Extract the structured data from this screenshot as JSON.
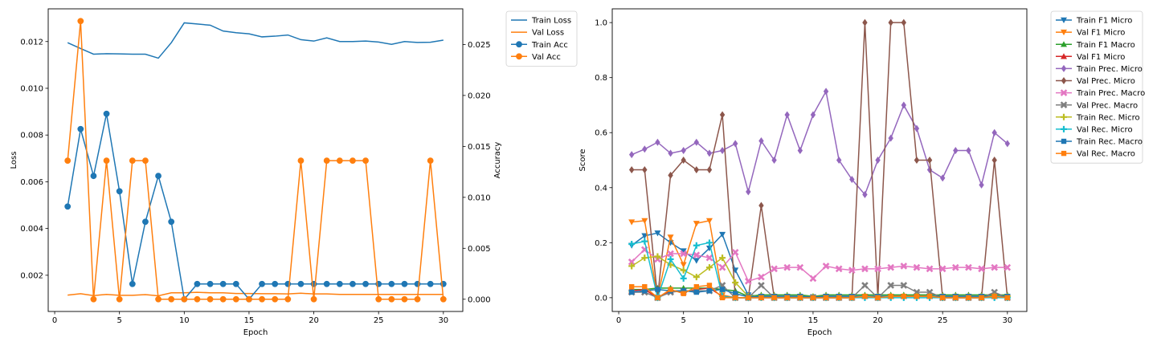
{
  "chart_data": [
    {
      "type": "line",
      "xlabel": "Epoch",
      "ylabel": "Loss",
      "y2label": "Accuracy",
      "xlim": [
        -0.5,
        31.5
      ],
      "ylim": [
        0.00045,
        0.0134
      ],
      "y2lim": [
        -0.0012,
        0.0285
      ],
      "xticks": [
        0,
        5,
        10,
        15,
        20,
        25,
        30
      ],
      "yticks": [
        0.002,
        0.004,
        0.006,
        0.008,
        0.01,
        0.012
      ],
      "y2ticks": [
        0.0,
        0.005,
        0.01,
        0.015,
        0.02,
        0.025
      ],
      "x": [
        1,
        2,
        3,
        4,
        5,
        6,
        7,
        8,
        9,
        10,
        11,
        12,
        13,
        14,
        15,
        16,
        17,
        18,
        19,
        20,
        21,
        22,
        23,
        24,
        25,
        26,
        27,
        28,
        29,
        30
      ],
      "legend_position": "outside-right",
      "series": [
        {
          "name": "Train Loss",
          "axis": "left",
          "marker": "none",
          "color": "#1f77b4",
          "values": [
            0.01195,
            0.0117,
            0.01146,
            0.01148,
            0.01147,
            0.01146,
            0.01146,
            0.01129,
            0.01195,
            0.0128,
            0.01275,
            0.0127,
            0.01245,
            0.01238,
            0.01233,
            0.0122,
            0.01223,
            0.01228,
            0.01208,
            0.01202,
            0.01216,
            0.012,
            0.012,
            0.01202,
            0.01198,
            0.01188,
            0.012,
            0.01196,
            0.01197,
            0.01206
          ]
        },
        {
          "name": "Val Loss",
          "axis": "left",
          "marker": "none",
          "color": "#ff7f0e",
          "values": [
            0.00115,
            0.00121,
            0.00113,
            0.00118,
            0.00114,
            0.00114,
            0.00117,
            0.00112,
            0.00125,
            0.00125,
            0.00127,
            0.00125,
            0.00125,
            0.00122,
            0.00122,
            0.00121,
            0.00121,
            0.0012,
            0.00123,
            0.0012,
            0.0012,
            0.00118,
            0.00118,
            0.00118,
            0.00118,
            0.00118,
            0.00118,
            0.00118,
            0.00118,
            0.00118
          ]
        },
        {
          "name": "Train Acc",
          "axis": "right",
          "marker": "circle",
          "color": "#1f77b4",
          "values": [
            0.0091,
            0.0167,
            0.0121,
            0.0182,
            0.0106,
            0.0015,
            0.0076,
            0.0121,
            0.0076,
            0.0,
            0.0015,
            0.0015,
            0.0015,
            0.0015,
            0.0,
            0.0015,
            0.0015,
            0.0015,
            0.0015,
            0.0015,
            0.0015,
            0.0015,
            0.0015,
            0.0015,
            0.0015,
            0.0015,
            0.0015,
            0.0015,
            0.0015,
            0.0015
          ]
        },
        {
          "name": "Val Acc",
          "axis": "right",
          "marker": "circle",
          "color": "#ff7f0e",
          "values": [
            0.0136,
            0.0273,
            0.0,
            0.0136,
            0.0,
            0.0136,
            0.0136,
            0.0,
            0.0,
            0.0,
            0.0,
            0.0,
            0.0,
            0.0,
            0.0,
            0.0,
            0.0,
            0.0,
            0.0136,
            0.0,
            0.0136,
            0.0136,
            0.0136,
            0.0136,
            0.0,
            0.0,
            0.0,
            0.0,
            0.0136,
            0.0
          ]
        }
      ]
    },
    {
      "type": "line",
      "xlabel": "Epoch",
      "ylabel": "Score",
      "xlim": [
        -0.5,
        31.5
      ],
      "ylim": [
        -0.05,
        1.05
      ],
      "xticks": [
        0,
        5,
        10,
        15,
        20,
        25,
        30
      ],
      "yticks": [
        0.0,
        0.2,
        0.4,
        0.6,
        0.8,
        1.0
      ],
      "x": [
        1,
        2,
        3,
        4,
        5,
        6,
        7,
        8,
        9,
        10,
        11,
        12,
        13,
        14,
        15,
        16,
        17,
        18,
        19,
        20,
        21,
        22,
        23,
        24,
        25,
        26,
        27,
        28,
        29,
        30
      ],
      "legend_position": "outside-right",
      "series": [
        {
          "name": "Train F1 Micro",
          "marker": "triangle-down",
          "color": "#1f77b4",
          "values": [
            0.19,
            0.225,
            0.235,
            0.2,
            0.17,
            0.135,
            0.18,
            0.23,
            0.1,
            0.01,
            0.005,
            0.005,
            0.005,
            0.005,
            0.003,
            0.005,
            0.005,
            0.005,
            0.005,
            0.005,
            0.005,
            0.005,
            0.005,
            0.005,
            0.005,
            0.005,
            0.005,
            0.005,
            0.005,
            0.005
          ]
        },
        {
          "name": "Val F1 Micro",
          "marker": "triangle-down",
          "color": "#ff7f0e",
          "values": [
            0.275,
            0.28,
            0.0,
            0.22,
            0.12,
            0.27,
            0.28,
            0.01,
            0.0,
            0.0,
            0.0,
            0.0,
            0.0,
            0.0,
            0.0,
            0.0,
            0.0,
            0.0,
            0.005,
            0.0,
            0.005,
            0.005,
            0.005,
            0.005,
            0.0,
            0.0,
            0.0,
            0.0,
            0.005,
            0.0
          ]
        },
        {
          "name": "Train F1 Macro",
          "marker": "triangle-up",
          "color": "#2ca02c",
          "values": [
            0.03,
            0.03,
            0.035,
            0.035,
            0.035,
            0.035,
            0.035,
            0.03,
            0.025,
            0.005,
            0.01,
            0.01,
            0.01,
            0.01,
            0.005,
            0.01,
            0.01,
            0.01,
            0.01,
            0.01,
            0.01,
            0.01,
            0.01,
            0.01,
            0.01,
            0.01,
            0.01,
            0.01,
            0.01,
            0.01
          ]
        },
        {
          "name": "Val F1 Micro",
          "marker": "triangle-up",
          "color": "#d62728",
          "values": [
            0.025,
            0.03,
            0.0,
            0.025,
            0.02,
            0.03,
            0.035,
            0.005,
            0.0,
            0.0,
            0.0,
            0.0,
            0.0,
            0.0,
            0.0,
            0.0,
            0.0,
            0.0,
            0.005,
            0.0,
            0.005,
            0.005,
            0.005,
            0.005,
            0.0,
            0.0,
            0.0,
            0.0,
            0.005,
            0.0
          ]
        },
        {
          "name": "Train Prec. Micro",
          "marker": "diamond",
          "color": "#9467bd",
          "values": [
            0.52,
            0.54,
            0.565,
            0.525,
            0.535,
            0.565,
            0.525,
            0.535,
            0.56,
            0.385,
            0.57,
            0.5,
            0.665,
            0.535,
            0.665,
            0.75,
            0.5,
            0.43,
            0.375,
            0.5,
            0.58,
            0.7,
            0.615,
            0.465,
            0.435,
            0.535,
            0.535,
            0.41,
            0.6,
            0.56
          ]
        },
        {
          "name": "Val Prec. Micro",
          "marker": "diamond",
          "color": "#8c564b",
          "values": [
            0.465,
            0.465,
            0.0,
            0.445,
            0.5,
            0.465,
            0.465,
            0.665,
            0.0,
            0.0,
            0.335,
            0.0,
            0.0,
            0.0,
            0.0,
            0.0,
            0.0,
            0.0,
            1.0,
            0.0,
            1.0,
            1.0,
            0.5,
            0.5,
            0.0,
            0.0,
            0.0,
            0.0,
            0.5,
            0.0
          ]
        },
        {
          "name": "Train Prec. Macro",
          "marker": "x",
          "color": "#e377c2",
          "values": [
            0.13,
            0.175,
            0.14,
            0.16,
            0.16,
            0.155,
            0.145,
            0.11,
            0.165,
            0.06,
            0.075,
            0.105,
            0.11,
            0.11,
            0.07,
            0.115,
            0.105,
            0.1,
            0.105,
            0.105,
            0.11,
            0.115,
            0.11,
            0.105,
            0.105,
            0.11,
            0.11,
            0.105,
            0.11,
            0.11
          ]
        },
        {
          "name": "Val Prec. Macro",
          "marker": "x",
          "color": "#7f7f7f",
          "values": [
            0.02,
            0.02,
            0.0,
            0.02,
            0.025,
            0.025,
            0.025,
            0.045,
            0.0,
            0.0,
            0.045,
            0.0,
            0.0,
            0.0,
            0.0,
            0.0,
            0.0,
            0.0,
            0.045,
            0.0,
            0.045,
            0.045,
            0.02,
            0.02,
            0.0,
            0.0,
            0.0,
            0.0,
            0.02,
            0.0
          ]
        },
        {
          "name": "Train Rec. Micro",
          "marker": "plus",
          "color": "#bcbd22",
          "values": [
            0.115,
            0.145,
            0.15,
            0.12,
            0.1,
            0.075,
            0.11,
            0.145,
            0.055,
            0.005,
            0.005,
            0.005,
            0.005,
            0.005,
            0.003,
            0.005,
            0.005,
            0.005,
            0.005,
            0.005,
            0.005,
            0.005,
            0.005,
            0.005,
            0.005,
            0.005,
            0.005,
            0.005,
            0.005,
            0.005
          ]
        },
        {
          "name": "Val Rec. Micro",
          "marker": "plus",
          "color": "#17becf",
          "values": [
            0.195,
            0.205,
            0.0,
            0.14,
            0.07,
            0.19,
            0.2,
            0.005,
            0.0,
            0.0,
            0.0,
            0.0,
            0.0,
            0.0,
            0.0,
            0.0,
            0.0,
            0.0,
            0.0,
            0.0,
            0.0,
            0.0,
            0.0,
            0.0,
            0.0,
            0.0,
            0.0,
            0.0,
            0.0,
            0.0
          ]
        },
        {
          "name": "Train Rec. Macro",
          "marker": "square",
          "color": "#1f77b4",
          "values": [
            0.02,
            0.025,
            0.03,
            0.025,
            0.025,
            0.02,
            0.025,
            0.03,
            0.015,
            0.003,
            0.005,
            0.005,
            0.005,
            0.005,
            0.002,
            0.005,
            0.005,
            0.005,
            0.005,
            0.005,
            0.005,
            0.005,
            0.005,
            0.005,
            0.005,
            0.005,
            0.005,
            0.005,
            0.005,
            0.005
          ]
        },
        {
          "name": "Val Rec. Macro",
          "marker": "square",
          "color": "#ff7f0e",
          "values": [
            0.04,
            0.04,
            0.0,
            0.03,
            0.015,
            0.04,
            0.045,
            0.0,
            0.0,
            0.0,
            0.0,
            0.0,
            0.0,
            0.0,
            0.0,
            0.0,
            0.0,
            0.0,
            0.005,
            0.0,
            0.005,
            0.005,
            0.005,
            0.005,
            0.0,
            0.0,
            0.0,
            0.0,
            0.005,
            0.0
          ]
        }
      ]
    }
  ]
}
